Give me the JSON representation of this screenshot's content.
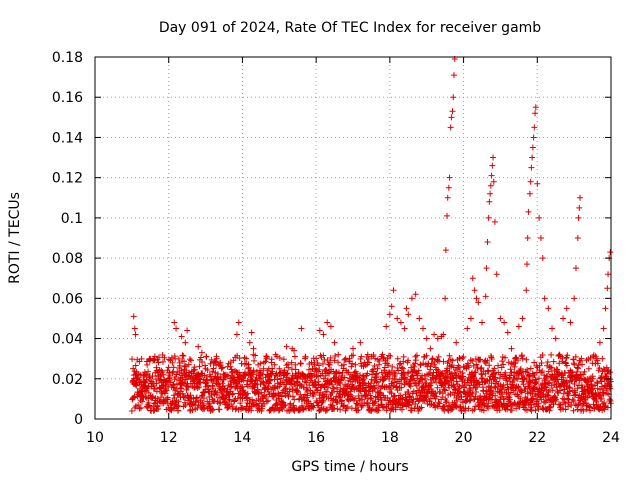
{
  "chart_data": {
    "type": "scatter",
    "title": "Day 091 of 2024, Rate Of TEC Index for receiver gamb",
    "xlabel": "GPS time / hours",
    "ylabel": "ROTI / TECUs",
    "xlim": [
      10,
      24
    ],
    "ylim": [
      0,
      0.18
    ],
    "xticks": [
      10,
      12,
      14,
      16,
      18,
      20,
      22,
      24
    ],
    "xtick_labels": [
      "10",
      "12",
      "14",
      "16",
      "18",
      "20",
      "22",
      "24"
    ],
    "yticks": [
      0,
      0.02,
      0.04,
      0.06,
      0.08,
      0.1,
      0.12,
      0.14,
      0.16,
      0.18
    ],
    "ytick_labels": [
      "0",
      "0.02",
      "0.04",
      "0.06",
      "0.08",
      "0.1",
      "0.12",
      "0.14",
      "0.16",
      "0.18"
    ],
    "grid": true,
    "marker": "+",
    "color": "#e00000",
    "series": [
      {
        "name": "ROTI",
        "points": [
          [
            11.05,
            0.051
          ],
          [
            11.08,
            0.045
          ],
          [
            11.1,
            0.042
          ],
          [
            11.2,
            0.018
          ],
          [
            11.3,
            0.012
          ],
          [
            11.4,
            0.022
          ],
          [
            11.5,
            0.03
          ],
          [
            11.6,
            0.015
          ],
          [
            11.7,
            0.01
          ],
          [
            11.8,
            0.024
          ],
          [
            11.9,
            0.014
          ],
          [
            12.0,
            0.02
          ],
          [
            12.1,
            0.028
          ],
          [
            12.15,
            0.048
          ],
          [
            12.2,
            0.045
          ],
          [
            12.35,
            0.041
          ],
          [
            12.45,
            0.038
          ],
          [
            12.5,
            0.044
          ],
          [
            12.6,
            0.02
          ],
          [
            12.8,
            0.036
          ],
          [
            12.9,
            0.033
          ],
          [
            13.0,
            0.025
          ],
          [
            13.2,
            0.015
          ],
          [
            13.3,
            0.03
          ],
          [
            13.4,
            0.028
          ],
          [
            13.5,
            0.012
          ],
          [
            13.6,
            0.026
          ],
          [
            13.8,
            0.024
          ],
          [
            13.85,
            0.042
          ],
          [
            13.9,
            0.048
          ],
          [
            14.0,
            0.02
          ],
          [
            14.1,
            0.03
          ],
          [
            14.2,
            0.038
          ],
          [
            14.25,
            0.043
          ],
          [
            14.3,
            0.035
          ],
          [
            14.5,
            0.02
          ],
          [
            14.7,
            0.018
          ],
          [
            14.9,
            0.032
          ],
          [
            15.0,
            0.025
          ],
          [
            15.2,
            0.036
          ],
          [
            15.35,
            0.035
          ],
          [
            15.4,
            0.034
          ],
          [
            15.5,
            0.02
          ],
          [
            15.6,
            0.045
          ],
          [
            15.7,
            0.03
          ],
          [
            15.9,
            0.025
          ],
          [
            16.0,
            0.03
          ],
          [
            16.1,
            0.044
          ],
          [
            16.2,
            0.042
          ],
          [
            16.3,
            0.048
          ],
          [
            16.4,
            0.046
          ],
          [
            16.5,
            0.038
          ],
          [
            16.6,
            0.032
          ],
          [
            16.8,
            0.03
          ],
          [
            17.0,
            0.035
          ],
          [
            17.2,
            0.038
          ],
          [
            17.4,
            0.032
          ],
          [
            17.6,
            0.03
          ],
          [
            17.8,
            0.032
          ],
          [
            17.9,
            0.046
          ],
          [
            18.0,
            0.052
          ],
          [
            18.05,
            0.056
          ],
          [
            18.1,
            0.064
          ],
          [
            18.2,
            0.05
          ],
          [
            18.3,
            0.048
          ],
          [
            18.4,
            0.045
          ],
          [
            18.45,
            0.055
          ],
          [
            18.5,
            0.052
          ],
          [
            18.6,
            0.06
          ],
          [
            18.7,
            0.062
          ],
          [
            18.8,
            0.05
          ],
          [
            18.9,
            0.045
          ],
          [
            19.0,
            0.04
          ],
          [
            19.1,
            0.035
          ],
          [
            19.2,
            0.042
          ],
          [
            19.3,
            0.04
          ],
          [
            19.4,
            0.041
          ],
          [
            19.45,
            0.042
          ],
          [
            19.5,
            0.06
          ],
          [
            19.52,
            0.084
          ],
          [
            19.55,
            0.101
          ],
          [
            19.57,
            0.11
          ],
          [
            19.6,
            0.115
          ],
          [
            19.62,
            0.12
          ],
          [
            19.65,
            0.145
          ],
          [
            19.67,
            0.15
          ],
          [
            19.7,
            0.153
          ],
          [
            19.72,
            0.16
          ],
          [
            19.74,
            0.171
          ],
          [
            19.76,
            0.179
          ],
          [
            19.8,
            0.038
          ],
          [
            19.9,
            0.03
          ],
          [
            20.0,
            0.026
          ],
          [
            20.1,
            0.045
          ],
          [
            20.2,
            0.05
          ],
          [
            20.25,
            0.07
          ],
          [
            20.3,
            0.064
          ],
          [
            20.35,
            0.06
          ],
          [
            20.4,
            0.058
          ],
          [
            20.5,
            0.048
          ],
          [
            20.6,
            0.061
          ],
          [
            20.62,
            0.075
          ],
          [
            20.65,
            0.088
          ],
          [
            20.68,
            0.1
          ],
          [
            20.7,
            0.108
          ],
          [
            20.72,
            0.112
          ],
          [
            20.74,
            0.116
          ],
          [
            20.76,
            0.121
          ],
          [
            20.78,
            0.126
          ],
          [
            20.8,
            0.13
          ],
          [
            20.82,
            0.118
          ],
          [
            20.85,
            0.098
          ],
          [
            20.9,
            0.072
          ],
          [
            21.0,
            0.05
          ],
          [
            21.1,
            0.048
          ],
          [
            21.2,
            0.043
          ],
          [
            21.3,
            0.035
          ],
          [
            21.4,
            0.03
          ],
          [
            21.5,
            0.046
          ],
          [
            21.6,
            0.05
          ],
          [
            21.7,
            0.064
          ],
          [
            21.72,
            0.077
          ],
          [
            21.74,
            0.09
          ],
          [
            21.76,
            0.103
          ],
          [
            21.8,
            0.112
          ],
          [
            21.82,
            0.118
          ],
          [
            21.84,
            0.125
          ],
          [
            21.86,
            0.13
          ],
          [
            21.88,
            0.135
          ],
          [
            21.9,
            0.14
          ],
          [
            21.92,
            0.145
          ],
          [
            21.94,
            0.152
          ],
          [
            21.96,
            0.155
          ],
          [
            22.0,
            0.117
          ],
          [
            22.05,
            0.1
          ],
          [
            22.1,
            0.09
          ],
          [
            22.15,
            0.08
          ],
          [
            22.2,
            0.06
          ],
          [
            22.3,
            0.055
          ],
          [
            22.4,
            0.045
          ],
          [
            22.5,
            0.04
          ],
          [
            22.6,
            0.032
          ],
          [
            22.7,
            0.05
          ],
          [
            22.8,
            0.055
          ],
          [
            22.9,
            0.048
          ],
          [
            23.0,
            0.06
          ],
          [
            23.05,
            0.075
          ],
          [
            23.1,
            0.09
          ],
          [
            23.12,
            0.1
          ],
          [
            23.14,
            0.105
          ],
          [
            23.16,
            0.11
          ],
          [
            23.2,
            0.03
          ],
          [
            23.4,
            0.025
          ],
          [
            23.5,
            0.02
          ],
          [
            23.6,
            0.03
          ],
          [
            23.7,
            0.038
          ],
          [
            23.8,
            0.045
          ],
          [
            23.85,
            0.055
          ],
          [
            23.9,
            0.065
          ],
          [
            23.92,
            0.072
          ],
          [
            23.95,
            0.08
          ],
          [
            23.98,
            0.083
          ]
        ],
        "baseline_band": {
          "description": "dense background scatter of ROTI values between about 0.005 and 0.03 TECU/min over 11.0–24.0 h",
          "x_range": [
            11.0,
            24.0
          ],
          "y_range": [
            0.004,
            0.032
          ],
          "step_hours": 0.01
        }
      }
    ]
  }
}
